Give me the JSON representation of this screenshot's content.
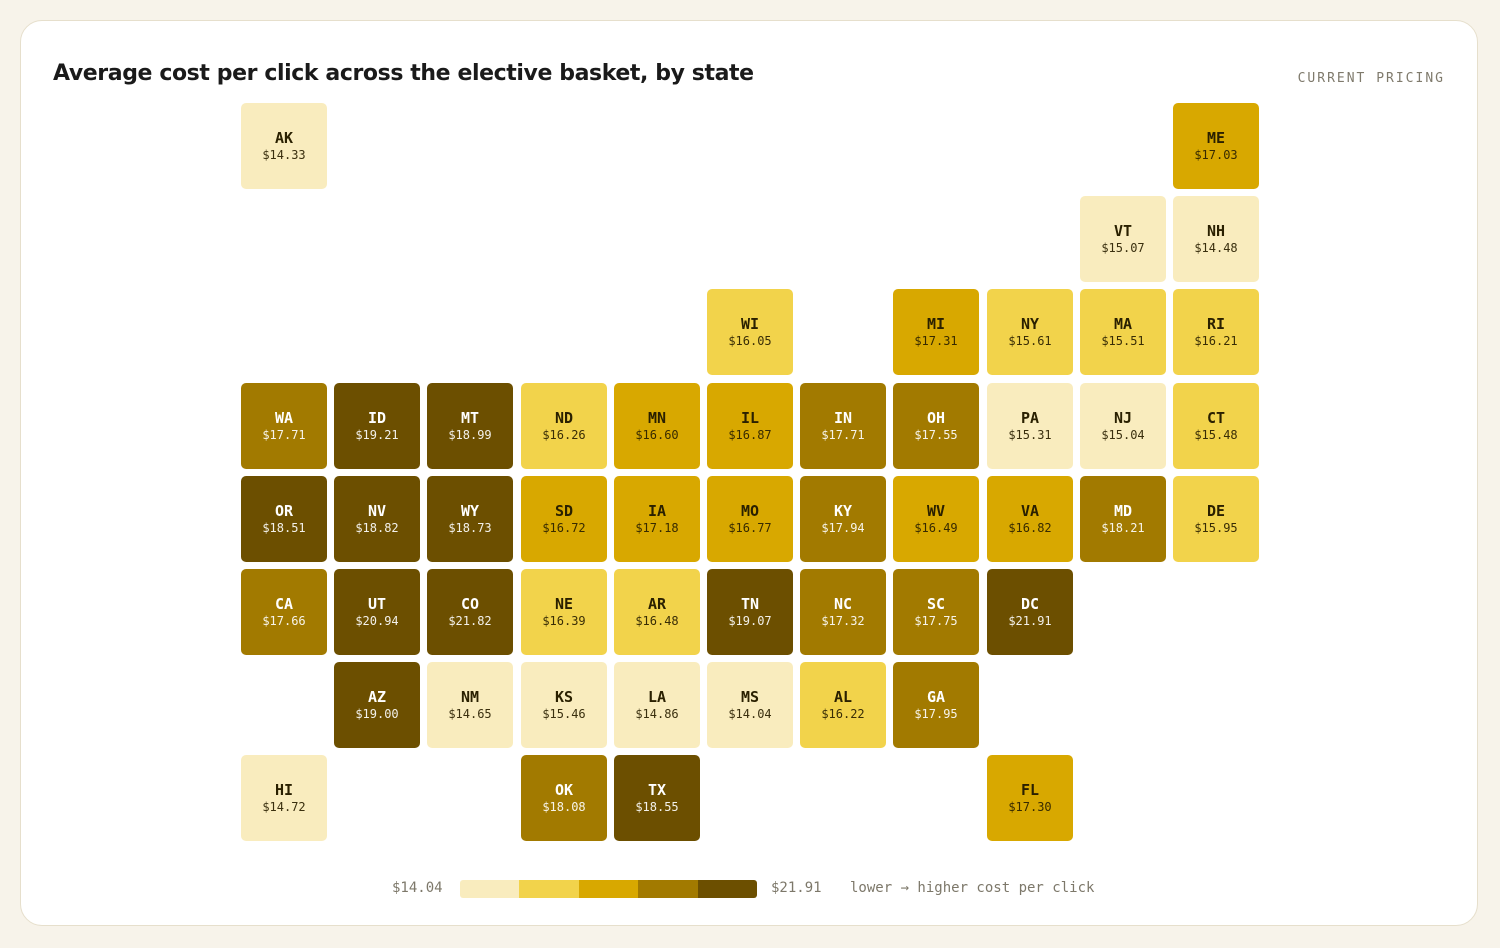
{
  "title": "Average cost per click across the elective basket, by state",
  "badge": "CURRENT PRICING",
  "scale": {
    "colors": [
      "#f9ecbe",
      "#f2d34b",
      "#d8a800",
      "#a27a00",
      "#6c4f00"
    ],
    "text_colors": [
      "#2a2000",
      "#2a2000",
      "#2a2000",
      "#ffffff",
      "#ffffff"
    ]
  },
  "chart_data": {
    "type": "heatmap",
    "title": "Average cost per click across the elective basket, by state",
    "min_value": 14.04,
    "max_value": 21.91,
    "states": [
      {
        "abbr": "AK",
        "value": "$14.33",
        "bin": 0,
        "row": 0,
        "col": 0
      },
      {
        "abbr": "ME",
        "value": "$17.03",
        "bin": 2,
        "row": 0,
        "col": 10
      },
      {
        "abbr": "VT",
        "value": "$15.07",
        "bin": 0,
        "row": 1,
        "col": 9
      },
      {
        "abbr": "NH",
        "value": "$14.48",
        "bin": 0,
        "row": 1,
        "col": 10
      },
      {
        "abbr": "WI",
        "value": "$16.05",
        "bin": 1,
        "row": 2,
        "col": 5
      },
      {
        "abbr": "MI",
        "value": "$17.31",
        "bin": 2,
        "row": 2,
        "col": 7
      },
      {
        "abbr": "NY",
        "value": "$15.61",
        "bin": 1,
        "row": 2,
        "col": 8
      },
      {
        "abbr": "MA",
        "value": "$15.51",
        "bin": 1,
        "row": 2,
        "col": 9
      },
      {
        "abbr": "RI",
        "value": "$16.21",
        "bin": 1,
        "row": 2,
        "col": 10
      },
      {
        "abbr": "WA",
        "value": "$17.71",
        "bin": 3,
        "row": 3,
        "col": 0
      },
      {
        "abbr": "ID",
        "value": "$19.21",
        "bin": 4,
        "row": 3,
        "col": 1
      },
      {
        "abbr": "MT",
        "value": "$18.99",
        "bin": 4,
        "row": 3,
        "col": 2
      },
      {
        "abbr": "ND",
        "value": "$16.26",
        "bin": 1,
        "row": 3,
        "col": 3
      },
      {
        "abbr": "MN",
        "value": "$16.60",
        "bin": 2,
        "row": 3,
        "col": 4
      },
      {
        "abbr": "IL",
        "value": "$16.87",
        "bin": 2,
        "row": 3,
        "col": 5
      },
      {
        "abbr": "IN",
        "value": "$17.71",
        "bin": 3,
        "row": 3,
        "col": 6
      },
      {
        "abbr": "OH",
        "value": "$17.55",
        "bin": 3,
        "row": 3,
        "col": 7
      },
      {
        "abbr": "PA",
        "value": "$15.31",
        "bin": 0,
        "row": 3,
        "col": 8
      },
      {
        "abbr": "NJ",
        "value": "$15.04",
        "bin": 0,
        "row": 3,
        "col": 9
      },
      {
        "abbr": "CT",
        "value": "$15.48",
        "bin": 1,
        "row": 3,
        "col": 10
      },
      {
        "abbr": "OR",
        "value": "$18.51",
        "bin": 4,
        "row": 4,
        "col": 0
      },
      {
        "abbr": "NV",
        "value": "$18.82",
        "bin": 4,
        "row": 4,
        "col": 1
      },
      {
        "abbr": "WY",
        "value": "$18.73",
        "bin": 4,
        "row": 4,
        "col": 2
      },
      {
        "abbr": "SD",
        "value": "$16.72",
        "bin": 2,
        "row": 4,
        "col": 3
      },
      {
        "abbr": "IA",
        "value": "$17.18",
        "bin": 2,
        "row": 4,
        "col": 4
      },
      {
        "abbr": "MO",
        "value": "$16.77",
        "bin": 2,
        "row": 4,
        "col": 5
      },
      {
        "abbr": "KY",
        "value": "$17.94",
        "bin": 3,
        "row": 4,
        "col": 6
      },
      {
        "abbr": "WV",
        "value": "$16.49",
        "bin": 2,
        "row": 4,
        "col": 7
      },
      {
        "abbr": "VA",
        "value": "$16.82",
        "bin": 2,
        "row": 4,
        "col": 8
      },
      {
        "abbr": "MD",
        "value": "$18.21",
        "bin": 3,
        "row": 4,
        "col": 9
      },
      {
        "abbr": "DE",
        "value": "$15.95",
        "bin": 1,
        "row": 4,
        "col": 10
      },
      {
        "abbr": "CA",
        "value": "$17.66",
        "bin": 3,
        "row": 5,
        "col": 0
      },
      {
        "abbr": "UT",
        "value": "$20.94",
        "bin": 4,
        "row": 5,
        "col": 1
      },
      {
        "abbr": "CO",
        "value": "$21.82",
        "bin": 4,
        "row": 5,
        "col": 2
      },
      {
        "abbr": "NE",
        "value": "$16.39",
        "bin": 1,
        "row": 5,
        "col": 3
      },
      {
        "abbr": "AR",
        "value": "$16.48",
        "bin": 1,
        "row": 5,
        "col": 4
      },
      {
        "abbr": "TN",
        "value": "$19.07",
        "bin": 4,
        "row": 5,
        "col": 5
      },
      {
        "abbr": "NC",
        "value": "$17.32",
        "bin": 3,
        "row": 5,
        "col": 6
      },
      {
        "abbr": "SC",
        "value": "$17.75",
        "bin": 3,
        "row": 5,
        "col": 7
      },
      {
        "abbr": "DC",
        "value": "$21.91",
        "bin": 4,
        "row": 5,
        "col": 8
      },
      {
        "abbr": "AZ",
        "value": "$19.00",
        "bin": 4,
        "row": 6,
        "col": 1
      },
      {
        "abbr": "NM",
        "value": "$14.65",
        "bin": 0,
        "row": 6,
        "col": 2
      },
      {
        "abbr": "KS",
        "value": "$15.46",
        "bin": 0,
        "row": 6,
        "col": 3
      },
      {
        "abbr": "LA",
        "value": "$14.86",
        "bin": 0,
        "row": 6,
        "col": 4
      },
      {
        "abbr": "MS",
        "value": "$14.04",
        "bin": 0,
        "row": 6,
        "col": 5
      },
      {
        "abbr": "AL",
        "value": "$16.22",
        "bin": 1,
        "row": 6,
        "col": 6
      },
      {
        "abbr": "GA",
        "value": "$17.95",
        "bin": 3,
        "row": 6,
        "col": 7
      },
      {
        "abbr": "HI",
        "value": "$14.72",
        "bin": 0,
        "row": 7,
        "col": 0
      },
      {
        "abbr": "OK",
        "value": "$18.08",
        "bin": 3,
        "row": 7,
        "col": 3
      },
      {
        "abbr": "TX",
        "value": "$18.55",
        "bin": 4,
        "row": 7,
        "col": 4
      },
      {
        "abbr": "FL",
        "value": "$17.30",
        "bin": 2,
        "row": 7,
        "col": 8
      }
    ]
  },
  "legend": {
    "min_label": "$14.04",
    "max_label": "$21.91",
    "note": "lower → higher cost per click"
  }
}
